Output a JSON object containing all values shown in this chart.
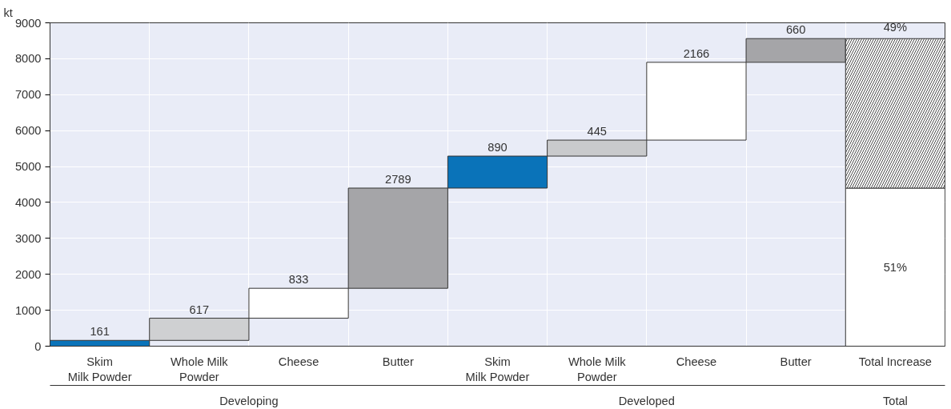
{
  "chart_data": {
    "type": "bar",
    "ylabel": "kt",
    "categories": [
      "Skim\nMilk Powder",
      "Whole Milk\nPowder",
      "Cheese",
      "Butter",
      "Skim\nMilk Powder",
      "Whole Milk\nPowder",
      "Cheese",
      "Butter",
      "Total Increase"
    ],
    "series": [
      {
        "colors": [
          "#0a73b9",
          "#cfd0d2",
          "#ffffff",
          "#a5a5a8",
          "#0a73b9",
          "#c9cacc",
          "#ffffff",
          "#a5a5a8",
          "#ffffff"
        ],
        "values": [
          161,
          617,
          833,
          2789,
          890,
          445,
          2166,
          660,
          4400
        ],
        "base": [
          0,
          161,
          778,
          1611,
          4400,
          5290,
          5735,
          7901,
          0
        ],
        "value_labels": [
          "161",
          "617",
          "833",
          "2789",
          "890",
          "445",
          "2166",
          "660",
          null
        ]
      },
      {
        "color": "#ffffff",
        "values": [
          null,
          null,
          null,
          null,
          null,
          null,
          null,
          null,
          4160
        ]
      }
    ],
    "ylim": [
      0,
      9000
    ],
    "yticks": [
      0,
      1000,
      2000,
      3000,
      4000,
      5000,
      6000,
      7000,
      8000,
      9000
    ],
    "grid": "y",
    "stacked": true,
    "annotations": [
      "51%",
      "49%",
      "Developing",
      "Developed",
      "Total"
    ]
  }
}
